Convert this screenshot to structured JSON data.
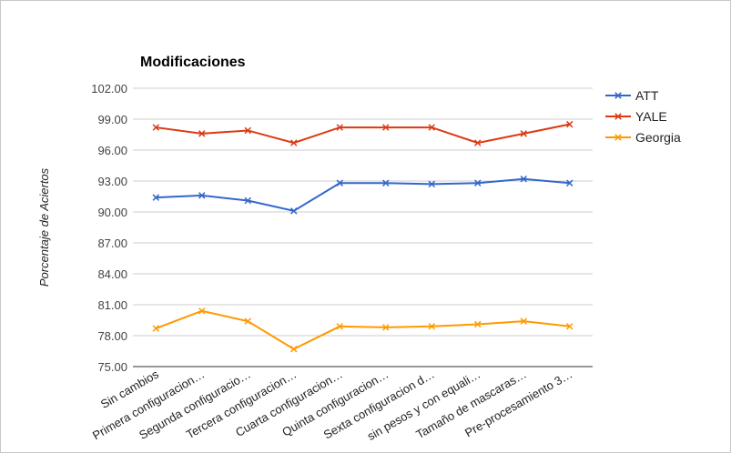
{
  "chart_data": {
    "type": "line",
    "title": "Modificaciones",
    "ylabel": "Porcentaje de Aciertos",
    "xlabel": "",
    "ylim": [
      75,
      102
    ],
    "yticks": [
      "102.00",
      "99.00",
      "96.00",
      "93.00",
      "90.00",
      "87.00",
      "84.00",
      "81.00",
      "78.00",
      "75.00"
    ],
    "categories": [
      "Sin cambios",
      "Primera configuracion…",
      "Segunda configuracio…",
      "Tercera configuracion…",
      "Cuarta configuracion…",
      "Quinta configuracion…",
      "Sexta configuracion d…",
      "sin pesos y con equali…",
      "Tamaño de mascaras…",
      "Pre-procesamiento 3…"
    ],
    "series": [
      {
        "name": "ATT",
        "color": "#3366cc",
        "values": [
          91.4,
          91.6,
          91.1,
          90.1,
          92.8,
          92.8,
          92.7,
          92.8,
          93.2,
          92.8
        ]
      },
      {
        "name": "YALE",
        "color": "#dc3912",
        "values": [
          98.2,
          97.6,
          97.9,
          96.7,
          98.2,
          98.2,
          98.2,
          96.7,
          97.6,
          98.5
        ]
      },
      {
        "name": "Georgia",
        "color": "#ff9900",
        "values": [
          78.7,
          80.4,
          79.4,
          76.7,
          78.9,
          78.8,
          78.9,
          79.1,
          79.4,
          78.9
        ]
      }
    ],
    "grid": true,
    "legend": "right"
  }
}
